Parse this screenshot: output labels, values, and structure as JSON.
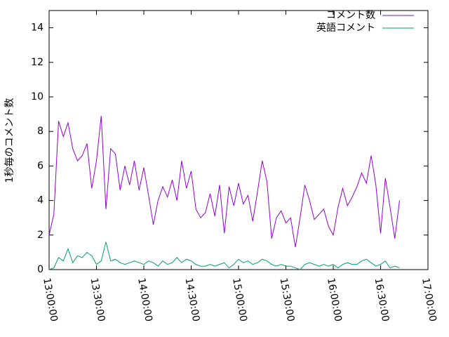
{
  "chart_data": {
    "type": "line",
    "y_label": "1秒毎のコメント数",
    "x": [
      "13:00:00",
      "13:03:00",
      "13:06:00",
      "13:09:00",
      "13:12:00",
      "13:15:00",
      "13:18:00",
      "13:21:00",
      "13:24:00",
      "13:27:00",
      "13:30:00",
      "13:33:00",
      "13:36:00",
      "13:39:00",
      "13:42:00",
      "13:45:00",
      "13:48:00",
      "13:51:00",
      "13:54:00",
      "13:57:00",
      "14:00:00",
      "14:03:00",
      "14:06:00",
      "14:09:00",
      "14:12:00",
      "14:15:00",
      "14:18:00",
      "14:21:00",
      "14:24:00",
      "14:27:00",
      "14:30:00",
      "14:33:00",
      "14:36:00",
      "14:39:00",
      "14:42:00",
      "14:45:00",
      "14:48:00",
      "14:51:00",
      "14:54:00",
      "14:57:00",
      "15:00:00",
      "15:03:00",
      "15:06:00",
      "15:09:00",
      "15:12:00",
      "15:15:00",
      "15:18:00",
      "15:21:00",
      "15:24:00",
      "15:27:00",
      "15:30:00",
      "15:33:00",
      "15:36:00",
      "15:39:00",
      "15:42:00",
      "15:45:00",
      "15:48:00",
      "15:51:00",
      "15:54:00",
      "15:57:00",
      "16:00:00",
      "16:03:00",
      "16:06:00",
      "16:09:00",
      "16:12:00",
      "16:15:00",
      "16:18:00",
      "16:21:00",
      "16:24:00",
      "16:27:00",
      "16:30:00",
      "16:33:00",
      "16:36:00",
      "16:39:00",
      "16:42:00"
    ],
    "series": [
      {
        "name": "コメント数",
        "color": "#9400d3",
        "values": [
          2.0,
          3.2,
          8.6,
          7.7,
          8.5,
          7.0,
          6.3,
          6.6,
          7.3,
          4.7,
          6.3,
          8.9,
          3.5,
          7.0,
          6.7,
          4.6,
          6.0,
          4.9,
          6.3,
          4.6,
          5.9,
          4.3,
          2.6,
          4.0,
          4.8,
          4.2,
          5.2,
          4.0,
          6.3,
          4.7,
          5.7,
          3.5,
          3.0,
          3.3,
          4.4,
          3.1,
          4.9,
          2.1,
          4.8,
          3.7,
          5.0,
          3.8,
          4.3,
          2.8,
          4.5,
          6.3,
          5.1,
          1.8,
          3.0,
          3.4,
          2.7,
          3.0,
          1.3,
          3.0,
          4.9,
          4.0,
          2.9,
          3.2,
          3.5,
          2.5,
          2.0,
          3.6,
          4.7,
          3.7,
          4.2,
          4.8,
          5.6,
          5.0,
          6.6,
          4.9,
          2.1,
          5.3,
          3.6,
          1.8,
          4.0
        ]
      },
      {
        "name": "英語コメント",
        "color": "#009e73",
        "values": [
          0.0,
          0.1,
          0.7,
          0.5,
          1.2,
          0.4,
          0.8,
          0.7,
          1.0,
          0.8,
          0.3,
          0.5,
          1.6,
          0.5,
          0.6,
          0.4,
          0.3,
          0.4,
          0.5,
          0.4,
          0.3,
          0.5,
          0.4,
          0.2,
          0.5,
          0.3,
          0.4,
          0.7,
          0.4,
          0.6,
          0.5,
          0.3,
          0.2,
          0.2,
          0.3,
          0.2,
          0.3,
          0.4,
          0.1,
          0.3,
          0.6,
          0.4,
          0.5,
          0.3,
          0.4,
          0.6,
          0.5,
          0.3,
          0.2,
          0.3,
          0.2,
          0.2,
          0.1,
          0.0,
          0.3,
          0.4,
          0.3,
          0.2,
          0.3,
          0.2,
          0.3,
          0.1,
          0.3,
          0.4,
          0.3,
          0.3,
          0.5,
          0.6,
          0.4,
          0.2,
          0.3,
          0.5,
          0.1,
          0.2,
          0.1
        ]
      }
    ],
    "xlim": [
      "13:00:00",
      "17:00:00"
    ],
    "xticks": [
      "13:00:00",
      "13:30:00",
      "14:00:00",
      "14:30:00",
      "15:00:00",
      "15:30:00",
      "16:00:00",
      "16:30:00",
      "17:00:00"
    ],
    "ylim": [
      0,
      15
    ],
    "yticks": [
      0,
      2,
      4,
      6,
      8,
      10,
      12,
      14
    ],
    "legend": "top-right",
    "grid": false
  }
}
